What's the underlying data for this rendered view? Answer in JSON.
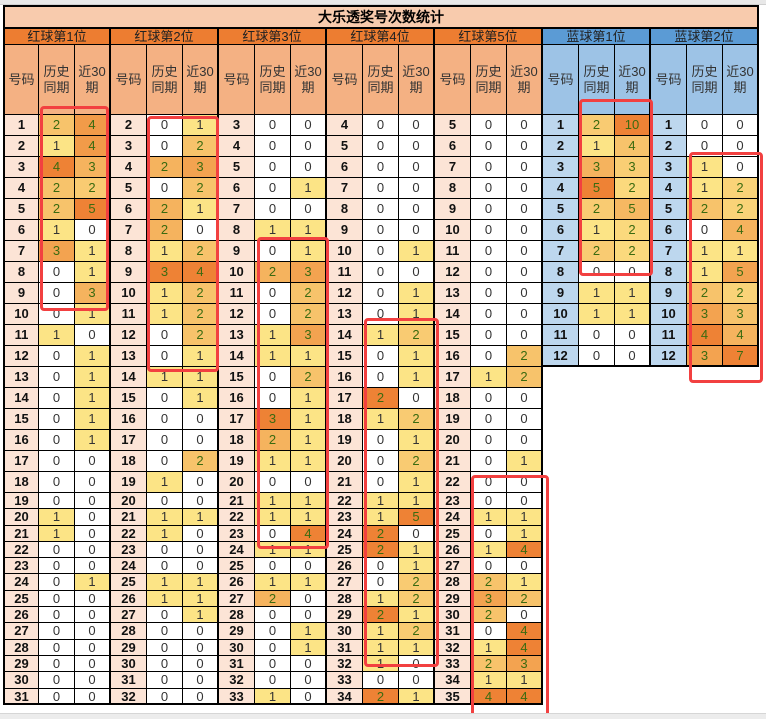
{
  "title": "大乐透奖号次数统计",
  "labels": {
    "number": "号码",
    "hist": [
      "历史",
      "同期"
    ],
    "recent": [
      "近30",
      "期"
    ]
  },
  "colors": {
    "red_header": "#ed7d31",
    "blue_header": "#5b9bd5",
    "scale_low": "#fde98a",
    "scale_high": "#ed7d31",
    "highlight_box": "#f24040"
  },
  "groups": [
    {
      "title": "红球第1位",
      "kind": "red",
      "numbers": [
        1,
        2,
        3,
        4,
        5,
        6,
        7,
        8,
        9,
        10,
        11,
        12,
        13,
        14,
        15,
        16,
        17,
        18,
        19,
        20,
        21,
        22,
        23,
        24,
        25,
        26,
        27,
        28,
        29,
        30,
        31
      ],
      "hist": [
        2,
        1,
        4,
        2,
        2,
        1,
        3,
        0,
        0,
        0,
        1,
        0,
        0,
        0,
        0,
        0,
        0,
        0,
        0,
        1,
        1,
        0,
        0,
        0,
        0,
        0,
        0,
        0,
        0,
        0,
        0
      ],
      "recent": [
        4,
        4,
        3,
        2,
        5,
        0,
        1,
        1,
        3,
        1,
        0,
        1,
        1,
        1,
        1,
        1,
        0,
        0,
        0,
        0,
        0,
        0,
        0,
        1,
        0,
        0,
        0,
        0,
        0,
        0,
        0
      ]
    },
    {
      "title": "红球第2位",
      "kind": "red",
      "numbers": [
        2,
        3,
        4,
        5,
        6,
        7,
        8,
        9,
        10,
        11,
        12,
        13,
        14,
        15,
        16,
        17,
        18,
        19,
        20,
        21,
        22,
        23,
        24,
        25,
        26,
        27,
        28,
        29,
        30,
        31,
        32
      ],
      "hist": [
        0,
        0,
        2,
        0,
        2,
        2,
        1,
        3,
        1,
        1,
        0,
        0,
        1,
        0,
        0,
        0,
        0,
        1,
        0,
        1,
        1,
        0,
        0,
        1,
        1,
        0,
        0,
        0,
        0,
        0,
        0
      ],
      "recent": [
        1,
        2,
        3,
        2,
        1,
        0,
        2,
        4,
        2,
        2,
        2,
        1,
        1,
        1,
        0,
        0,
        2,
        0,
        0,
        1,
        0,
        0,
        0,
        1,
        1,
        1,
        0,
        0,
        0,
        0,
        0
      ]
    },
    {
      "title": "红球第3位",
      "kind": "red",
      "numbers": [
        3,
        4,
        5,
        6,
        7,
        8,
        9,
        10,
        11,
        12,
        13,
        14,
        15,
        16,
        17,
        18,
        19,
        20,
        21,
        22,
        23,
        24,
        25,
        26,
        27,
        28,
        29,
        30,
        31,
        32,
        33
      ],
      "hist": [
        0,
        0,
        0,
        0,
        0,
        1,
        0,
        2,
        0,
        0,
        1,
        1,
        0,
        0,
        3,
        2,
        1,
        0,
        1,
        1,
        0,
        1,
        0,
        1,
        2,
        0,
        0,
        0,
        0,
        0,
        1
      ],
      "recent": [
        0,
        0,
        0,
        1,
        0,
        1,
        1,
        3,
        2,
        2,
        3,
        1,
        2,
        1,
        1,
        1,
        1,
        0,
        1,
        1,
        4,
        1,
        0,
        1,
        0,
        0,
        1,
        1,
        0,
        0,
        0
      ]
    },
    {
      "title": "红球第4位",
      "kind": "red",
      "numbers": [
        4,
        5,
        6,
        7,
        8,
        9,
        10,
        11,
        12,
        13,
        14,
        15,
        16,
        17,
        18,
        19,
        20,
        21,
        22,
        23,
        24,
        25,
        26,
        27,
        28,
        29,
        30,
        31,
        32,
        33,
        34
      ],
      "hist": [
        0,
        0,
        0,
        0,
        0,
        0,
        0,
        0,
        0,
        0,
        1,
        0,
        0,
        2,
        1,
        0,
        0,
        0,
        1,
        1,
        2,
        2,
        0,
        0,
        1,
        2,
        1,
        1,
        1,
        0,
        2
      ],
      "recent": [
        0,
        0,
        0,
        0,
        0,
        0,
        1,
        0,
        1,
        1,
        2,
        1,
        1,
        0,
        2,
        1,
        2,
        1,
        1,
        5,
        0,
        1,
        1,
        2,
        2,
        1,
        2,
        1,
        0,
        0,
        1
      ]
    },
    {
      "title": "红球第5位",
      "kind": "red",
      "numbers": [
        5,
        6,
        7,
        8,
        9,
        10,
        11,
        12,
        13,
        14,
        15,
        16,
        17,
        18,
        19,
        20,
        21,
        22,
        23,
        24,
        25,
        26,
        27,
        28,
        29,
        30,
        31,
        32,
        33,
        34,
        35
      ],
      "hist": [
        0,
        0,
        0,
        0,
        0,
        0,
        0,
        0,
        0,
        0,
        0,
        0,
        1,
        0,
        0,
        0,
        0,
        0,
        0,
        1,
        0,
        1,
        0,
        2,
        3,
        2,
        0,
        1,
        2,
        1,
        4
      ],
      "recent": [
        0,
        0,
        0,
        0,
        0,
        0,
        0,
        0,
        0,
        0,
        0,
        2,
        2,
        0,
        0,
        0,
        1,
        0,
        0,
        1,
        1,
        4,
        0,
        1,
        2,
        0,
        4,
        4,
        3,
        1,
        4
      ]
    },
    {
      "title": "蓝球第1位",
      "kind": "blue",
      "numbers": [
        1,
        2,
        3,
        4,
        5,
        6,
        7,
        8,
        9,
        10,
        11,
        12
      ],
      "hist": [
        2,
        1,
        3,
        5,
        2,
        1,
        2,
        0,
        1,
        1,
        0,
        0
      ],
      "recent": [
        10,
        4,
        3,
        2,
        5,
        2,
        2,
        0,
        1,
        1,
        0,
        0
      ]
    },
    {
      "title": "蓝球第2位",
      "kind": "blue",
      "numbers": [
        1,
        2,
        3,
        4,
        5,
        6,
        7,
        8,
        9,
        10,
        11,
        12
      ],
      "hist": [
        0,
        0,
        1,
        1,
        2,
        0,
        1,
        1,
        2,
        3,
        4,
        3
      ],
      "recent": [
        0,
        0,
        0,
        2,
        2,
        4,
        1,
        5,
        2,
        3,
        4,
        7
      ]
    }
  ]
}
